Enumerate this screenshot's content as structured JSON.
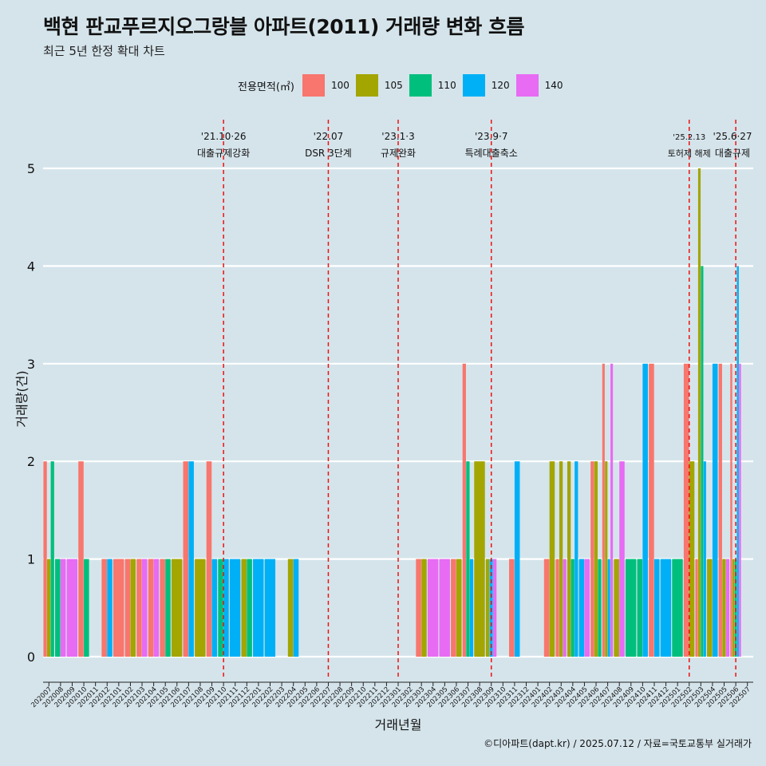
{
  "title": "백현 판교푸르지오그랑블 아파트(2011) 거래량 변화 흐름",
  "subtitle": "최근 5년 한정 확대 차트",
  "source": "©디아파트(dapt.kr) / 2025.07.12 / 자료=국토교통부 실거래가",
  "legend": {
    "title": "전용면적(㎡)",
    "items": [
      {
        "label": "100",
        "color": "#f8766d"
      },
      {
        "label": "105",
        "color": "#a3a500"
      },
      {
        "label": "110",
        "color": "#00bf7d"
      },
      {
        "label": "120",
        "color": "#00b0f6"
      },
      {
        "label": "140",
        "color": "#e76bf3"
      }
    ]
  },
  "chart_data": {
    "type": "bar",
    "xlabel": "거래년월",
    "ylabel": "거래량(건)",
    "ylim": [
      -0.2,
      5.5
    ],
    "yticks": [
      0,
      1,
      2,
      3,
      4,
      5
    ],
    "grid": true,
    "legend_position": "top",
    "categories": [
      "202007",
      "202008",
      "202009",
      "202010",
      "202011",
      "202012",
      "202101",
      "202102",
      "202103",
      "202104",
      "202105",
      "202106",
      "202107",
      "202108",
      "202109",
      "202110",
      "202111",
      "202112",
      "202201",
      "202202",
      "202203",
      "202204",
      "202205",
      "202206",
      "202207",
      "202208",
      "202209",
      "202210",
      "202211",
      "202212",
      "202301",
      "202302",
      "202303",
      "202304",
      "202305",
      "202306",
      "202307",
      "202308",
      "202309",
      "202310",
      "202311",
      "202312",
      "202401",
      "202402",
      "202403",
      "202404",
      "202405",
      "202406",
      "202407",
      "202408",
      "202409",
      "202410",
      "202411",
      "202412",
      "202501",
      "202502",
      "202503",
      "202504",
      "202505",
      "202506",
      "202507"
    ],
    "series": [
      {
        "name": "100",
        "color": "#f8766d",
        "values": [
          2,
          0,
          0,
          2,
          0,
          1,
          1,
          1,
          1,
          1,
          1,
          0,
          2,
          0,
          2,
          0,
          0,
          0,
          0,
          0,
          0,
          0,
          0,
          0,
          0,
          0,
          0,
          0,
          0,
          0,
          0,
          0,
          1,
          0,
          0,
          1,
          3,
          0,
          0,
          0,
          1,
          0,
          0,
          1,
          1,
          0,
          0,
          2,
          3,
          0,
          0,
          0,
          3,
          0,
          0,
          3,
          1,
          0,
          3,
          3,
          0
        ]
      },
      {
        "name": "105",
        "color": "#a3a500",
        "values": [
          1,
          0,
          0,
          0,
          0,
          0,
          0,
          1,
          0,
          0,
          0,
          1,
          0,
          1,
          0,
          0,
          0,
          1,
          0,
          0,
          0,
          1,
          0,
          0,
          0,
          0,
          0,
          0,
          0,
          0,
          0,
          0,
          1,
          0,
          0,
          1,
          0,
          2,
          1,
          0,
          0,
          0,
          0,
          2,
          2,
          2,
          0,
          2,
          2,
          1,
          0,
          0,
          0,
          0,
          0,
          2,
          5,
          1,
          1,
          1,
          0
        ]
      },
      {
        "name": "110",
        "color": "#00bf7d",
        "values": [
          2,
          1,
          0,
          1,
          0,
          0,
          0,
          0,
          0,
          0,
          1,
          0,
          0,
          0,
          0,
          1,
          0,
          1,
          0,
          0,
          0,
          0,
          0,
          0,
          0,
          0,
          0,
          0,
          0,
          0,
          0,
          0,
          0,
          0,
          0,
          0,
          2,
          0,
          0,
          0,
          0,
          0,
          0,
          0,
          0,
          1,
          0,
          1,
          0,
          0,
          1,
          1,
          0,
          0,
          1,
          0,
          4,
          0,
          0,
          1,
          0
        ]
      },
      {
        "name": "120",
        "color": "#00b0f6",
        "values": [
          0,
          0,
          0,
          0,
          0,
          1,
          0,
          0,
          0,
          0,
          0,
          0,
          2,
          0,
          1,
          1,
          1,
          0,
          1,
          1,
          0,
          1,
          0,
          0,
          0,
          0,
          0,
          0,
          0,
          0,
          0,
          0,
          0,
          0,
          0,
          0,
          1,
          0,
          1,
          0,
          2,
          0,
          0,
          0,
          0,
          2,
          1,
          0,
          1,
          0,
          0,
          3,
          1,
          1,
          0,
          0,
          2,
          3,
          0,
          4,
          0
        ]
      },
      {
        "name": "140",
        "color": "#e76bf3",
        "values": [
          0,
          1,
          1,
          0,
          0,
          0,
          0,
          0,
          1,
          1,
          0,
          0,
          0,
          0,
          0,
          0,
          0,
          0,
          0,
          0,
          0,
          0,
          0,
          0,
          0,
          0,
          0,
          0,
          0,
          0,
          0,
          0,
          0,
          1,
          1,
          0,
          0,
          0,
          1,
          0,
          0,
          0,
          0,
          0,
          1,
          0,
          1,
          0,
          3,
          2,
          0,
          0,
          0,
          0,
          0,
          0,
          0,
          0,
          1,
          3,
          0
        ]
      }
    ],
    "annotations": [
      {
        "x": "202110",
        "date": "'21.10·26",
        "label": "대출규제강화"
      },
      {
        "x": "202207",
        "date": "'22.07",
        "label": "DSR 3단계"
      },
      {
        "x": "202301",
        "date": "'23.1·3",
        "label": "규제완화"
      },
      {
        "x": "202309",
        "date": "'23.9·7",
        "label": "특례대출축소"
      },
      {
        "x": "202502",
        "date": "'25.2.13",
        "label": "토허제 해제"
      },
      {
        "x": "202506",
        "date": "'25.6·27",
        "label": "대출규제"
      }
    ]
  }
}
